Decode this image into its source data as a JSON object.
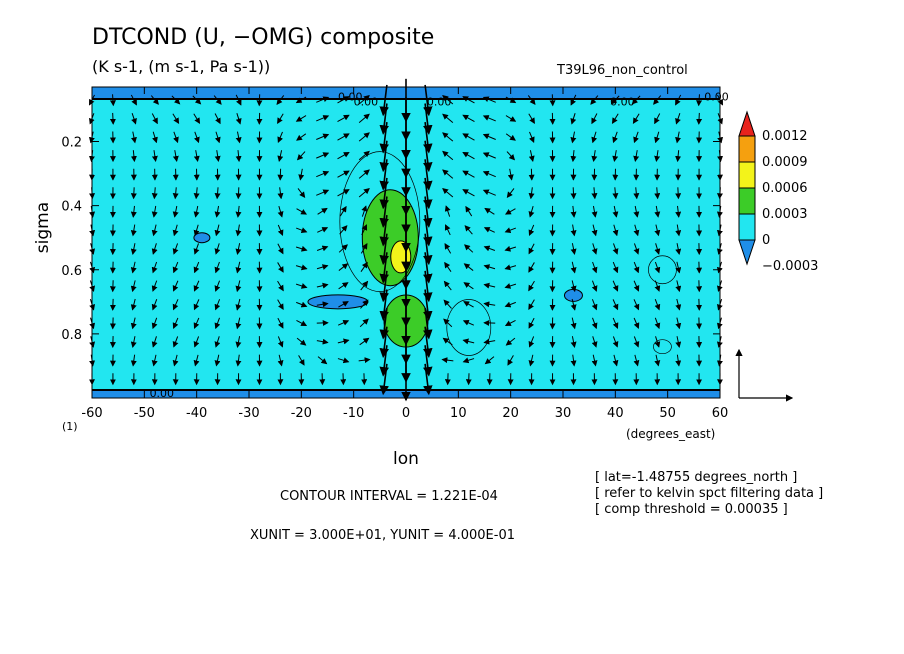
{
  "chart_data": {
    "type": "heatmap",
    "title": "DTCOND (U, −OMG) composite",
    "subtitle": "(K s-1, (m s-1, Pa s-1))",
    "run_label": "T39L96_non_control",
    "xlabel": "lon",
    "x_units": "(degrees_east)",
    "ylabel": "sigma",
    "y_corner_label": "(1)",
    "xlim": [
      -60,
      60
    ],
    "ylim": [
      1.0,
      0.03
    ],
    "x_ticks": [
      -60,
      -50,
      -40,
      -30,
      -20,
      -10,
      0,
      10,
      20,
      30,
      40,
      50,
      60
    ],
    "y_ticks": [
      0.2,
      0.4,
      0.6,
      0.8
    ],
    "colorbar": {
      "labels": [
        "0.0012",
        "0.0009",
        "0.0006",
        "0.0003",
        "0",
        "−0.0003"
      ],
      "colors": [
        "#e8231d",
        "#f5a00f",
        "#f3f31a",
        "#3ccc28",
        "#22e6f0",
        "#1f8ee8"
      ]
    },
    "background_value": "0 to 0.0003 (cyan)",
    "regions": [
      {
        "name": "heating-core-green",
        "x": -3,
        "y": 0.5,
        "value": "0.0003-0.0006"
      },
      {
        "name": "heating-core-yellow",
        "x": -1,
        "y": 0.56,
        "value": "0.0006-0.0009"
      },
      {
        "name": "lower-green-lobe",
        "x": 0,
        "y": 0.76,
        "value": "0.0003-0.0006"
      },
      {
        "name": "cooling-blob-1",
        "x": -39,
        "y": 0.5,
        "value": "<0"
      },
      {
        "name": "cooling-blob-2",
        "x": -13,
        "y": 0.7,
        "value": "<0"
      },
      {
        "name": "cooling-blob-3",
        "x": 32,
        "y": 0.68,
        "value": "<0"
      },
      {
        "name": "top-band",
        "x": 0,
        "y": 0.05,
        "value": "<0"
      },
      {
        "name": "bottom-band",
        "x": 0,
        "y": 0.99,
        "value": "<0"
      }
    ],
    "contour_labels": [
      "0.00",
      "0.00",
      "0.00",
      "0.00",
      "0.00",
      "0.00"
    ],
    "vector_reference": {
      "xunit": "3.000E+01",
      "yunit": "4.000E-01"
    }
  },
  "footer": {
    "contour_interval": "CONTOUR INTERVAL = 1.221E-04",
    "units": "XUNIT = 3.000E+01, YUNIT = 4.000E-01",
    "notes": [
      "[ lat=-1.48755 degrees_north ]",
      "[ refer to kelvin spct filtering data ]",
      "[ comp threshold = 0.00035 ]"
    ]
  }
}
